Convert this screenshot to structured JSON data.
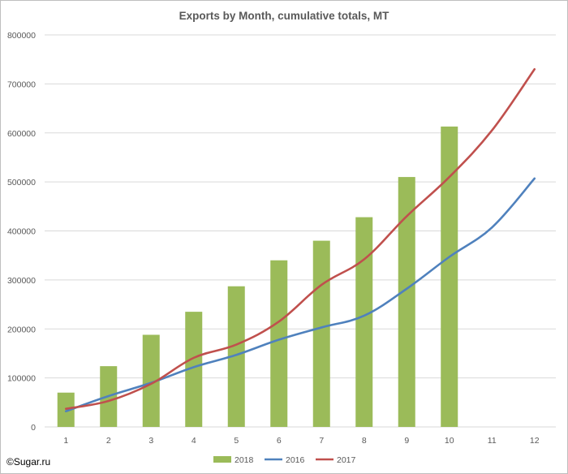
{
  "chart_data": {
    "type": "bar",
    "title": "Exports by Month, cumulative totals, MT",
    "xlabel": "",
    "ylabel": "",
    "categories": [
      "1",
      "2",
      "3",
      "4",
      "5",
      "6",
      "7",
      "8",
      "9",
      "10",
      "11",
      "12"
    ],
    "ylim": [
      0,
      800000
    ],
    "yticks": [
      0,
      100000,
      200000,
      300000,
      400000,
      500000,
      600000,
      700000,
      800000
    ],
    "ytick_labels": [
      "0",
      "100000",
      "200000",
      "300000",
      "400000",
      "500000",
      "600000",
      "700000",
      "800000"
    ],
    "grid": true,
    "legend_position": "bottom",
    "series": [
      {
        "name": "2018",
        "kind": "bar",
        "color": "#9bbb59",
        "values": [
          70000,
          124000,
          188000,
          235000,
          287000,
          340000,
          380000,
          428000,
          510000,
          613000,
          null,
          null
        ]
      },
      {
        "name": "2016",
        "kind": "line",
        "color": "#4f81bd",
        "values": [
          32000,
          63000,
          90000,
          122000,
          147000,
          178000,
          203000,
          227000,
          282000,
          347000,
          407000,
          507000
        ]
      },
      {
        "name": "2017",
        "kind": "line",
        "color": "#c0504d",
        "values": [
          37000,
          53000,
          88000,
          141000,
          168000,
          215000,
          290000,
          342000,
          430000,
          510000,
          605000,
          730000
        ]
      }
    ]
  },
  "footer": {
    "copyright": "©Sugar.ru"
  }
}
